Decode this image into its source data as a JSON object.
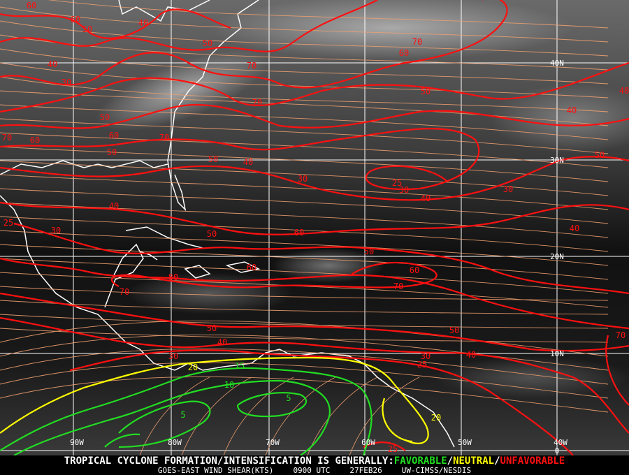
{
  "map": {
    "product": "GOES-EAST WIND SHEAR(KTS)",
    "time": "0900 UTC",
    "date": "27FEB26",
    "source": "UW-CIMSS/NESDIS",
    "headline_prefix": "TROPICAL CYCLONE FORMATION/INTENSIFICATION IS GENERALLY:",
    "favorable": "FAVORABLE",
    "neutral": "NEUTRAL",
    "unfavorable": "UNFAVORABLE",
    "separator": "/",
    "longitude_labels": [
      "90W",
      "80W",
      "70W",
      "60W",
      "50W",
      "40W"
    ],
    "latitude_labels": [
      "40N",
      "30N",
      "20N",
      "10N",
      "0"
    ],
    "colors": {
      "favorable": "#22dd22",
      "neutral": "#ffff00",
      "unfavorable": "#ff1010",
      "streamlines": "#f0a070",
      "grid": "#ffffff",
      "coastline": "#ffffff"
    },
    "contour_labels": [
      "60",
      "60",
      "50",
      "40",
      "50",
      "70",
      "40",
      "30",
      "70",
      "60",
      "50",
      "70",
      "50",
      "60",
      "70",
      "70",
      "60",
      "50",
      "50",
      "40",
      "30",
      "25",
      "30",
      "40",
      "30",
      "50",
      "40",
      "40",
      "40",
      "25",
      "30",
      "50",
      "60",
      "40",
      "50",
      "60",
      "80",
      "60",
      "70",
      "70",
      "50",
      "40",
      "50",
      "70",
      "40",
      "30",
      "25",
      "25",
      "30",
      "20",
      "15",
      "10",
      "5",
      "5",
      "20"
    ]
  }
}
